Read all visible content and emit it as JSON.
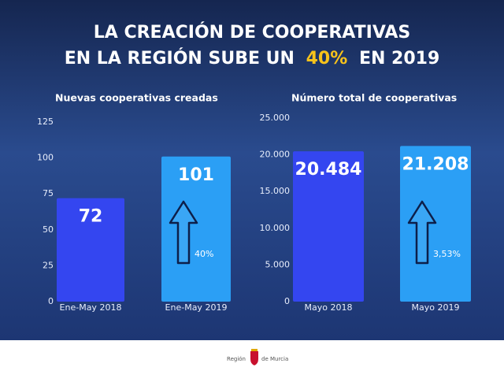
{
  "header": {
    "title_line1": "LA CREACIÓN DE COOPERATIVAS",
    "title_line2_start": "EN LA REGIÓN SUBE UN",
    "title_highlight": "40%",
    "title_line2_end": "EN 2019"
  },
  "chart_data": [
    {
      "type": "bar",
      "title": "Nuevas cooperativas creadas",
      "categories": [
        "Ene-May 2018",
        "Ene-May 2019"
      ],
      "values": [
        72,
        101
      ],
      "colors": [
        "#3446f0",
        "#2b9ff5"
      ],
      "ylim": [
        0,
        125
      ],
      "yticks": [
        0,
        25,
        50,
        75,
        100,
        125
      ],
      "annotation": "40%"
    },
    {
      "type": "bar",
      "title": "Número total de cooperativas",
      "categories": [
        "Mayo 2018",
        "Mayo 2019"
      ],
      "values": [
        20484,
        21208
      ],
      "value_labels": [
        "20.484",
        "21.208"
      ],
      "colors": [
        "#3446f0",
        "#2b9ff5"
      ],
      "ylim": [
        0,
        25000
      ],
      "yticks": [
        0,
        {
          "value": 5000,
          "label": "5.000"
        },
        {
          "value": 10000,
          "label": "10.000"
        },
        {
          "value": 15000,
          "label": "15.000"
        },
        {
          "value": 20000,
          "label": "20.000"
        },
        {
          "value": 25000,
          "label": "25.000"
        }
      ],
      "annotation": "3,53%"
    }
  ],
  "footer": {
    "left": "Región",
    "right": "de Murcia"
  }
}
